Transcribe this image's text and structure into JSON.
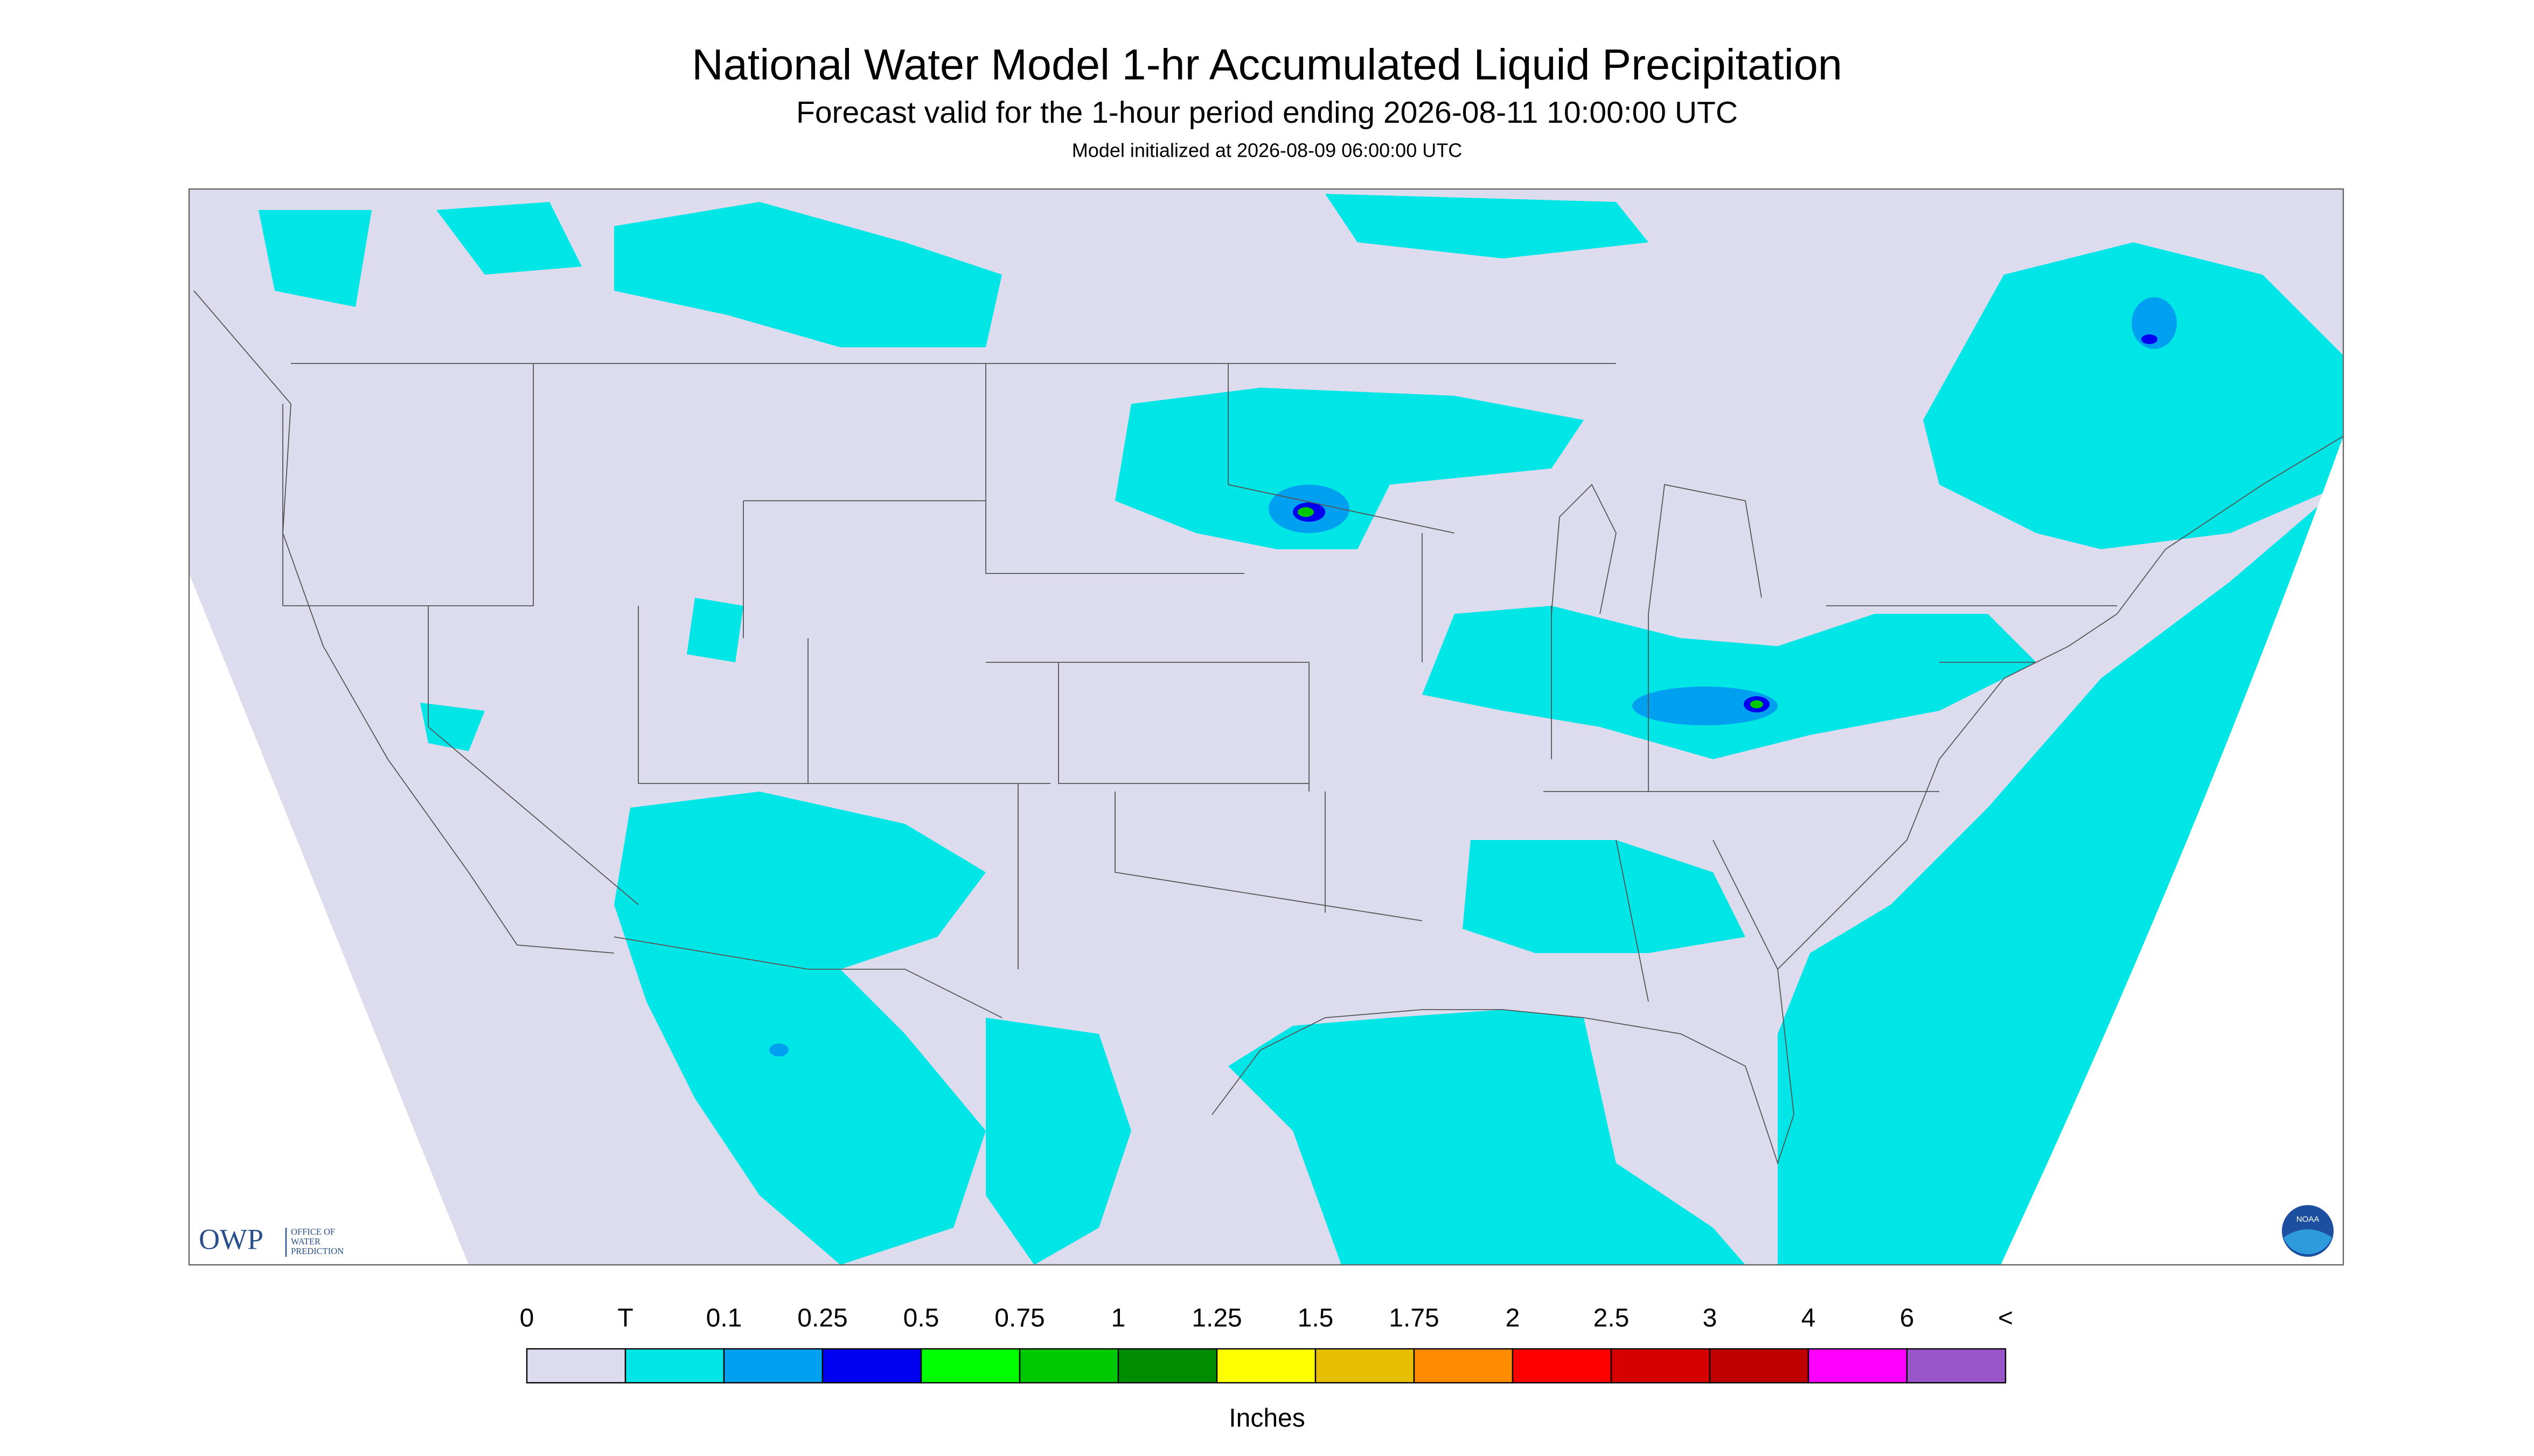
{
  "header": {
    "title": "National Water Model 1-hr Accumulated Liquid Precipitation",
    "subtitle": "Forecast valid for the 1-hour period ending 2026-08-11 10:00:00 UTC",
    "init": "Model initialized at 2026-08-09 06:00:00 UTC"
  },
  "logos": {
    "owp": "OWP",
    "owp_lines": [
      "OFFICE OF",
      "WATER",
      "PREDICTION"
    ],
    "noaa": "NOAA"
  },
  "legend": {
    "labels": [
      "0",
      "T",
      "0.1",
      "0.25",
      "0.5",
      "0.75",
      "1",
      "1.25",
      "1.5",
      "1.75",
      "2",
      "2.5",
      "3",
      "4",
      "6",
      "<"
    ],
    "colors": [
      "#dcdcee",
      "#00e6e6",
      "#00a0f0",
      "#0000f0",
      "#00ff00",
      "#00c800",
      "#008c00",
      "#ffff00",
      "#e6bf00",
      "#ff8c00",
      "#ff0000",
      "#d60000",
      "#be0000",
      "#ff00ff",
      "#9955c9"
    ],
    "unit": "Inches"
  }
}
